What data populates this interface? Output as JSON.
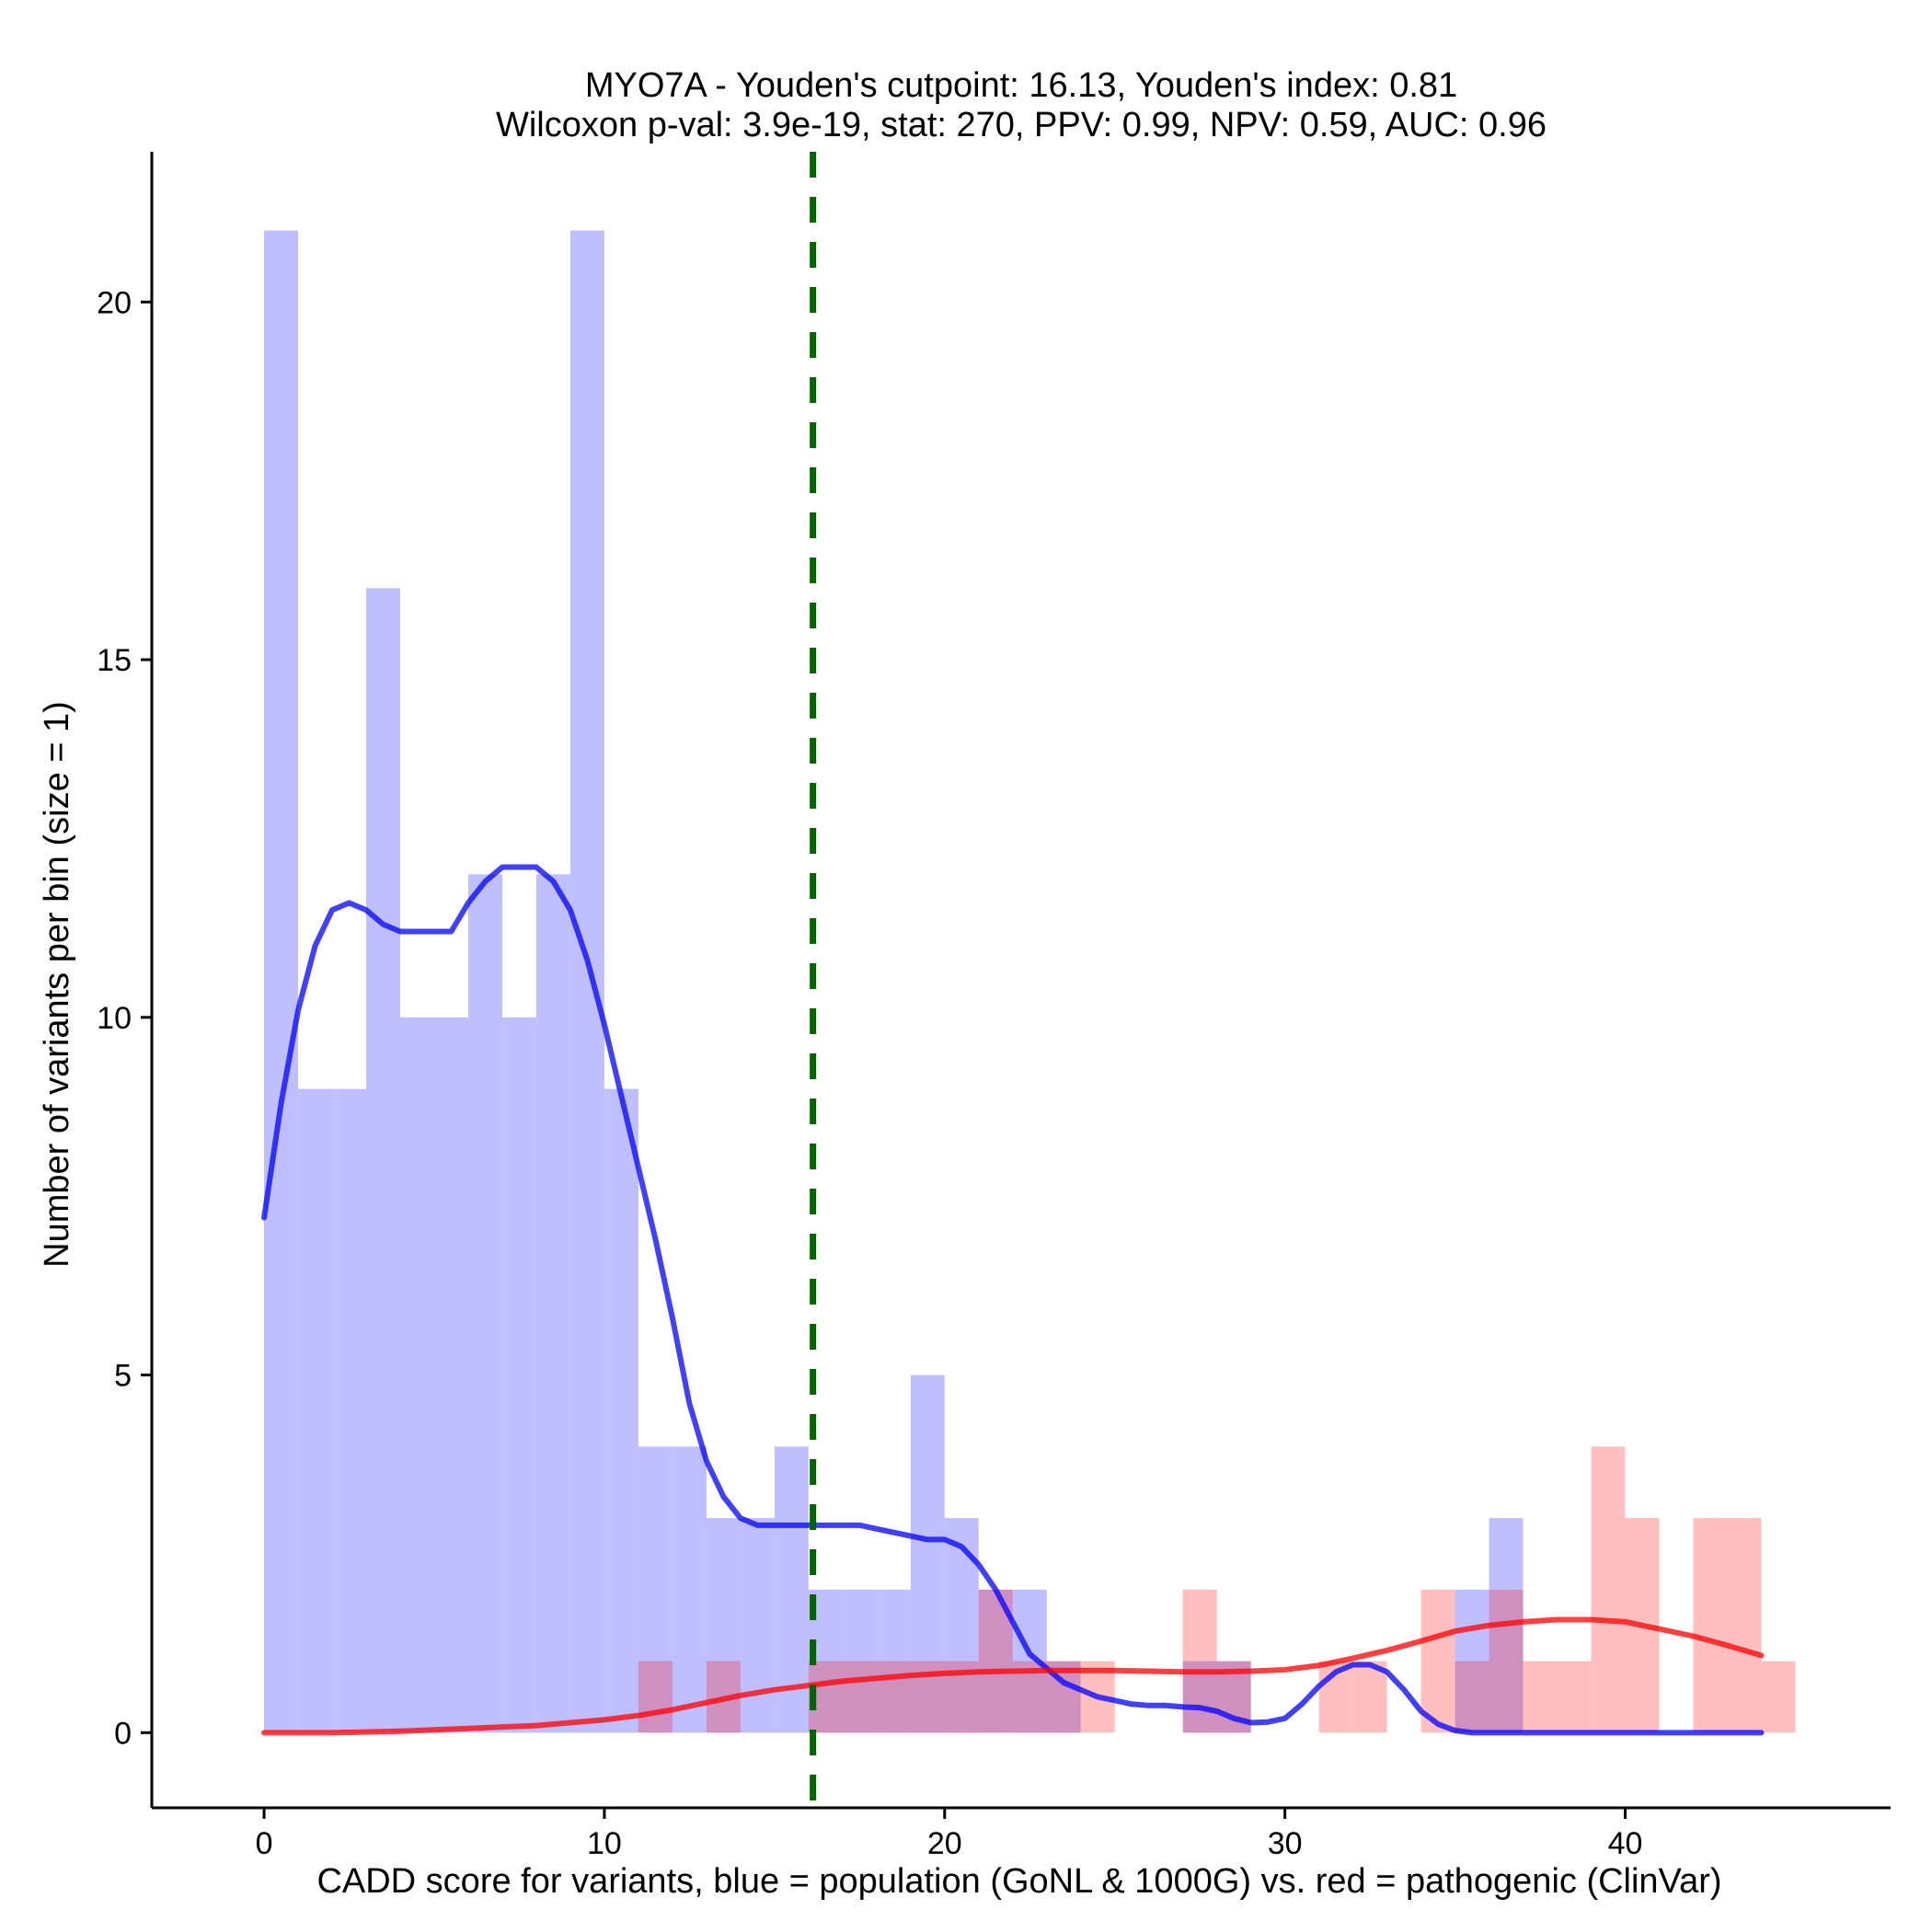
{
  "chart_data": {
    "type": "histogram",
    "title_line1": "MYO7A - Youden's cutpoint: 16.13, Youden's index: 0.81",
    "title_line2": "Wilcoxon p-val: 3.9e-19, stat: 270, PPV: 0.99, NPV: 0.59, AUC: 0.96",
    "xlabel": "CADD score for variants, blue = population (GoNL & 1000G) vs. red = pathogenic (ClinVar)",
    "ylabel": "Number of variants per bin (size = 1)",
    "xlim": [
      -3.3,
      47.8
    ],
    "ylim": [
      -1.05,
      22.1
    ],
    "xticks": [
      0,
      10,
      20,
      30,
      40
    ],
    "yticks": [
      0,
      5,
      10,
      15,
      20
    ],
    "bin_size": 1,
    "cutpoint": 16.13,
    "colors": {
      "population": "#0000ff",
      "pathogenic": "#ff0000",
      "cutpoint": "#006400"
    },
    "series": [
      {
        "name": "population (GoNL & 1000G)",
        "color": "#0000ff",
        "bin_starts": [
          0,
          1,
          2,
          3,
          4,
          5,
          6,
          7,
          8,
          9,
          10,
          11,
          12,
          13,
          14,
          15,
          16,
          17,
          18,
          19,
          20,
          21,
          22,
          23,
          24,
          25,
          26,
          27,
          28,
          29,
          30,
          31,
          32,
          33,
          34,
          35,
          36,
          37,
          38,
          39,
          40,
          41,
          42,
          43,
          44
        ],
        "counts": [
          21,
          9,
          9,
          16,
          10,
          10,
          12,
          10,
          12,
          21,
          9,
          4,
          4,
          3,
          3,
          4,
          2,
          2,
          2,
          5,
          3,
          2,
          2,
          1,
          0,
          0,
          0,
          1,
          1,
          0,
          0,
          0,
          0,
          0,
          0,
          2,
          3,
          0,
          0,
          0,
          0,
          0,
          0,
          0,
          0
        ],
        "density_curve": {
          "x": [
            0,
            0.5,
            1,
            1.5,
            2,
            2.5,
            3,
            3.5,
            4,
            4.5,
            5,
            5.5,
            6,
            6.5,
            7,
            7.5,
            8,
            8.5,
            9,
            9.5,
            10,
            10.5,
            11,
            11.5,
            12,
            12.5,
            13,
            13.5,
            14,
            14.5,
            15,
            15.5,
            16,
            16.5,
            17,
            17.5,
            18,
            18.5,
            19,
            19.5,
            20,
            20.5,
            21,
            21.5,
            22,
            22.5,
            23,
            23.5,
            24,
            24.5,
            25,
            25.5,
            26,
            26.5,
            27,
            27.5,
            28,
            28.5,
            29,
            29.5,
            30,
            30.5,
            31,
            31.5,
            32,
            32.5,
            33,
            33.5,
            34,
            34.5,
            35,
            35.5,
            36,
            36.5,
            37,
            37.5,
            38,
            38.5,
            39,
            39.5,
            40,
            40.5,
            41,
            41.5,
            42,
            42.5,
            43,
            43.5,
            44
          ],
          "y": [
            7.2,
            8.8,
            10.1,
            11.0,
            11.5,
            11.6,
            11.5,
            11.3,
            11.2,
            11.2,
            11.2,
            11.2,
            11.6,
            11.9,
            12.1,
            12.1,
            12.1,
            11.9,
            11.5,
            10.8,
            9.9,
            8.9,
            7.9,
            6.9,
            5.8,
            4.6,
            3.8,
            3.3,
            3.0,
            2.9,
            2.9,
            2.9,
            2.9,
            2.9,
            2.9,
            2.9,
            2.85,
            2.8,
            2.75,
            2.7,
            2.7,
            2.6,
            2.35,
            2.0,
            1.55,
            1.1,
            0.9,
            0.7,
            0.6,
            0.5,
            0.45,
            0.4,
            0.38,
            0.38,
            0.36,
            0.35,
            0.3,
            0.2,
            0.14,
            0.15,
            0.2,
            0.4,
            0.65,
            0.85,
            0.95,
            0.95,
            0.85,
            0.6,
            0.3,
            0.12,
            0.03,
            0.0,
            0.0,
            0.0,
            0.0,
            0.0,
            0.0,
            0.0,
            0.0,
            0.0,
            0.0,
            0.0,
            0.0,
            0.0,
            0.0,
            0.0,
            0.0,
            0.0,
            0.0
          ]
        }
      },
      {
        "name": "pathogenic (ClinVar)",
        "color": "#ff0000",
        "bin_starts": [
          0,
          1,
          2,
          3,
          4,
          5,
          6,
          7,
          8,
          9,
          10,
          11,
          12,
          13,
          14,
          15,
          16,
          17,
          18,
          19,
          20,
          21,
          22,
          23,
          24,
          25,
          26,
          27,
          28,
          29,
          30,
          31,
          32,
          33,
          34,
          35,
          36,
          37,
          38,
          39,
          40,
          41,
          42,
          43,
          44
        ],
        "counts": [
          0,
          0,
          0,
          0,
          0,
          0,
          0,
          0,
          0,
          0,
          0,
          1,
          0,
          1,
          0,
          0,
          1,
          1,
          1,
          1,
          1,
          2,
          1,
          1,
          1,
          0,
          0,
          2,
          1,
          0,
          0,
          1,
          1,
          0,
          2,
          1,
          2,
          1,
          1,
          4,
          3,
          0,
          3,
          3,
          1
        ],
        "density_curve": {
          "x": [
            0,
            2,
            4,
            6,
            8,
            10,
            11,
            12,
            13,
            14,
            15,
            16,
            17,
            18,
            19,
            20,
            21,
            22,
            23,
            24,
            25,
            26,
            27,
            28,
            29,
            30,
            31,
            32,
            33,
            34,
            35,
            36,
            37,
            38,
            39,
            40,
            41,
            42,
            43,
            44
          ],
          "y": [
            0.0,
            0.0,
            0.02,
            0.06,
            0.1,
            0.18,
            0.24,
            0.32,
            0.42,
            0.52,
            0.6,
            0.66,
            0.72,
            0.76,
            0.8,
            0.83,
            0.85,
            0.86,
            0.87,
            0.87,
            0.87,
            0.86,
            0.85,
            0.85,
            0.86,
            0.88,
            0.94,
            1.04,
            1.15,
            1.28,
            1.42,
            1.5,
            1.55,
            1.58,
            1.58,
            1.55,
            1.45,
            1.35,
            1.22,
            1.08
          ]
        }
      }
    ]
  }
}
